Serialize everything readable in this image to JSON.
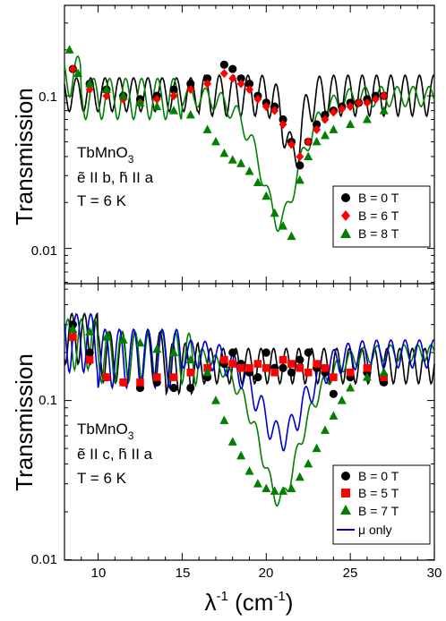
{
  "chart_data": [
    {
      "type": "scatter",
      "ylabel": "Transmission",
      "yscale": "log",
      "ylim": [
        0.007,
        0.8
      ],
      "xlim": [
        8,
        30
      ],
      "yticks": [
        "0.01",
        "0.1"
      ],
      "annotation": [
        "TbMnO3",
        "ẽ II b, h̃ II a",
        "T = 6 K"
      ],
      "legend_position": "lower-right",
      "series": [
        {
          "name": "B = 0 T",
          "marker": "circle",
          "color": "#000000",
          "x": [
            8.5,
            9.5,
            10.5,
            11.5,
            12.5,
            13.5,
            14.5,
            15.5,
            16.5,
            17.5,
            18.0,
            18.5,
            19.0,
            19.5,
            20.0,
            20.5,
            21.0,
            21.5,
            22.0,
            22.5,
            23.0,
            23.5,
            24.0,
            24.5,
            25.0,
            25.5,
            26.0,
            26.5,
            27.0
          ],
          "y": [
            0.15,
            0.12,
            0.11,
            0.1,
            0.095,
            0.1,
            0.11,
            0.12,
            0.13,
            0.16,
            0.15,
            0.13,
            0.12,
            0.1,
            0.09,
            0.085,
            0.07,
            0.05,
            0.035,
            0.05,
            0.065,
            0.075,
            0.08,
            0.085,
            0.09,
            0.09,
            0.095,
            0.1,
            0.1
          ]
        },
        {
          "name": "B = 6 T",
          "marker": "diamond",
          "color": "#ff0000",
          "x": [
            8.5,
            9.5,
            10.5,
            11.5,
            12.5,
            13.5,
            14.5,
            15.5,
            16.5,
            17.5,
            18.0,
            18.5,
            19.0,
            19.5,
            20.0,
            20.5,
            21.0,
            21.5,
            22.0,
            22.5,
            23.0,
            23.5,
            24.0,
            24.5,
            25.0,
            25.5,
            26.0,
            26.5,
            27.0
          ],
          "y": [
            0.15,
            0.11,
            0.1,
            0.095,
            0.09,
            0.095,
            0.1,
            0.11,
            0.12,
            0.14,
            0.13,
            0.12,
            0.11,
            0.095,
            0.085,
            0.08,
            0.065,
            0.048,
            0.04,
            0.05,
            0.06,
            0.07,
            0.078,
            0.082,
            0.085,
            0.09,
            0.09,
            0.095,
            0.1
          ]
        },
        {
          "name": "B = 8 T",
          "marker": "triangle",
          "color": "#008000",
          "x": [
            8.3,
            8.8,
            9.5,
            10.5,
            11.5,
            12.5,
            13.5,
            14.5,
            15.5,
            16.5,
            17.0,
            17.5,
            18.0,
            18.5,
            19.0,
            19.5,
            20.0,
            20.5,
            21.0,
            21.5,
            22.0,
            22.5,
            23.0,
            23.5,
            24.0,
            25.0,
            26.0,
            27.0
          ],
          "y": [
            0.2,
            0.14,
            0.12,
            0.11,
            0.1,
            0.09,
            0.085,
            0.08,
            0.075,
            0.06,
            0.05,
            0.042,
            0.038,
            0.036,
            0.032,
            0.027,
            0.022,
            0.017,
            0.014,
            0.012,
            0.028,
            0.04,
            0.05,
            0.055,
            0.06,
            0.065,
            0.07,
            0.08
          ]
        }
      ]
    },
    {
      "type": "scatter",
      "ylabel": "Transmission",
      "xlabel": "λ-1 (cm-1)",
      "yscale": "log",
      "ylim": [
        0.01,
        0.55
      ],
      "xlim": [
        8,
        30
      ],
      "xticks": [
        "10",
        "15",
        "20",
        "25",
        "30"
      ],
      "yticks": [
        "0.01",
        "0.1"
      ],
      "annotation": [
        "TbMnO3",
        "ẽ II c, h̃ II a",
        "T = 6 K"
      ],
      "legend_position": "lower-right",
      "series": [
        {
          "name": "B = 0 T",
          "marker": "circle",
          "color": "#000000",
          "x": [
            8.5,
            9.5,
            10.5,
            11.5,
            12.5,
            13.5,
            14.5,
            15.5,
            16.5,
            17.5,
            18.0,
            18.5,
            19.0,
            19.5,
            20.0,
            20.5,
            21.0,
            21.5,
            22.0,
            22.5,
            23.0,
            23.5,
            24.0,
            25.0,
            26.0,
            27.0
          ],
          "y": [
            0.3,
            0.2,
            0.14,
            0.13,
            0.12,
            0.13,
            0.12,
            0.12,
            0.14,
            0.17,
            0.2,
            0.17,
            0.15,
            0.14,
            0.2,
            0.16,
            0.16,
            0.15,
            0.18,
            0.2,
            0.16,
            0.15,
            0.11,
            0.14,
            0.15,
            0.13
          ]
        },
        {
          "name": "B = 5 T",
          "marker": "square",
          "color": "#ff0000",
          "x": [
            8.5,
            9.5,
            10.5,
            11.5,
            12.5,
            13.5,
            14.5,
            15.5,
            16.5,
            17.5,
            18.0,
            18.5,
            19.0,
            19.5,
            20.0,
            20.5,
            21.0,
            21.5,
            22.0,
            22.5,
            23.0,
            23.5,
            24.0,
            25.0,
            26.0,
            27.0
          ],
          "y": [
            0.25,
            0.18,
            0.14,
            0.13,
            0.13,
            0.14,
            0.14,
            0.15,
            0.16,
            0.18,
            0.17,
            0.16,
            0.16,
            0.17,
            0.16,
            0.15,
            0.18,
            0.17,
            0.16,
            0.15,
            0.17,
            0.16,
            0.14,
            0.15,
            0.16,
            0.14
          ]
        },
        {
          "name": "B = 7 T",
          "marker": "triangle",
          "color": "#008000",
          "x": [
            8.5,
            9.5,
            10.5,
            11.5,
            12.5,
            13.5,
            14.5,
            15.5,
            16.5,
            17.0,
            17.5,
            18.0,
            18.5,
            19.0,
            19.5,
            20.0,
            20.5,
            21.0,
            21.5,
            22.0,
            22.5,
            23.0,
            23.5,
            24.0,
            24.5,
            25.0,
            26.0,
            27.0
          ],
          "y": [
            0.28,
            0.27,
            0.25,
            0.24,
            0.23,
            0.21,
            0.2,
            0.18,
            0.15,
            0.1,
            0.075,
            0.055,
            0.045,
            0.036,
            0.03,
            0.028,
            0.027,
            0.027,
            0.028,
            0.033,
            0.04,
            0.05,
            0.065,
            0.08,
            0.1,
            0.12,
            0.14,
            0.15
          ]
        },
        {
          "name": "μ only",
          "line": true,
          "color": "#0000cd"
        }
      ]
    }
  ]
}
